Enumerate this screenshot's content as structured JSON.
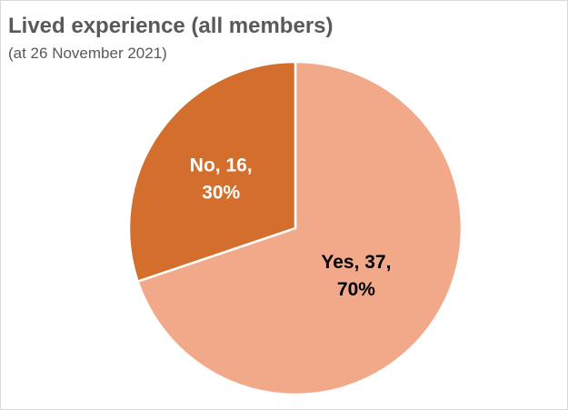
{
  "chart_data": {
    "type": "pie",
    "title": "Lived experience (all members)",
    "subtitle": "(at 26 November 2021)",
    "categories": [
      "Yes",
      "No"
    ],
    "values": [
      37,
      16
    ],
    "percentages": [
      "70%",
      "30%"
    ],
    "colors": [
      "#f2a98a",
      "#d36e2c"
    ],
    "label_colors": [
      "#000000",
      "#ffffff"
    ],
    "labels": [
      {
        "line1": "Yes, 37,",
        "line2": "70%"
      },
      {
        "line1": "No, 16,",
        "line2": "30%"
      }
    ],
    "slice_border_color": "#ffffff",
    "legend": "none"
  }
}
